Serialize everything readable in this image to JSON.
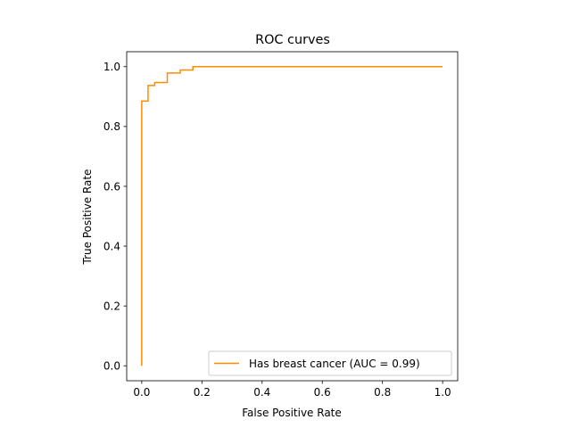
{
  "chart_data": {
    "type": "line",
    "title": "ROC curves",
    "xlabel": "False Positive Rate",
    "ylabel": "True Positive Rate",
    "xlim": [
      -0.05,
      1.05
    ],
    "ylim": [
      -0.05,
      1.05
    ],
    "xticks": [
      0.0,
      0.2,
      0.4,
      0.6,
      0.8,
      1.0
    ],
    "yticks": [
      0.0,
      0.2,
      0.4,
      0.6,
      0.8,
      1.0
    ],
    "xtick_labels": [
      "0.0",
      "0.2",
      "0.4",
      "0.6",
      "0.8",
      "1.0"
    ],
    "ytick_labels": [
      "0.0",
      "0.2",
      "0.4",
      "0.6",
      "0.8",
      "1.0"
    ],
    "grid": false,
    "legend": {
      "position": "lower-right"
    },
    "series": [
      {
        "name": "Has breast cancer (AUC = 0.99)",
        "color": "#ff8c00",
        "x": [
          0.0,
          0.0,
          0.0,
          0.021,
          0.021,
          0.043,
          0.043,
          0.085,
          0.085,
          0.128,
          0.128,
          0.17,
          0.17,
          1.0
        ],
        "y": [
          0.0,
          0.885,
          0.885,
          0.885,
          0.937,
          0.937,
          0.947,
          0.947,
          0.979,
          0.979,
          0.989,
          0.989,
          1.0,
          1.0
        ]
      }
    ]
  }
}
